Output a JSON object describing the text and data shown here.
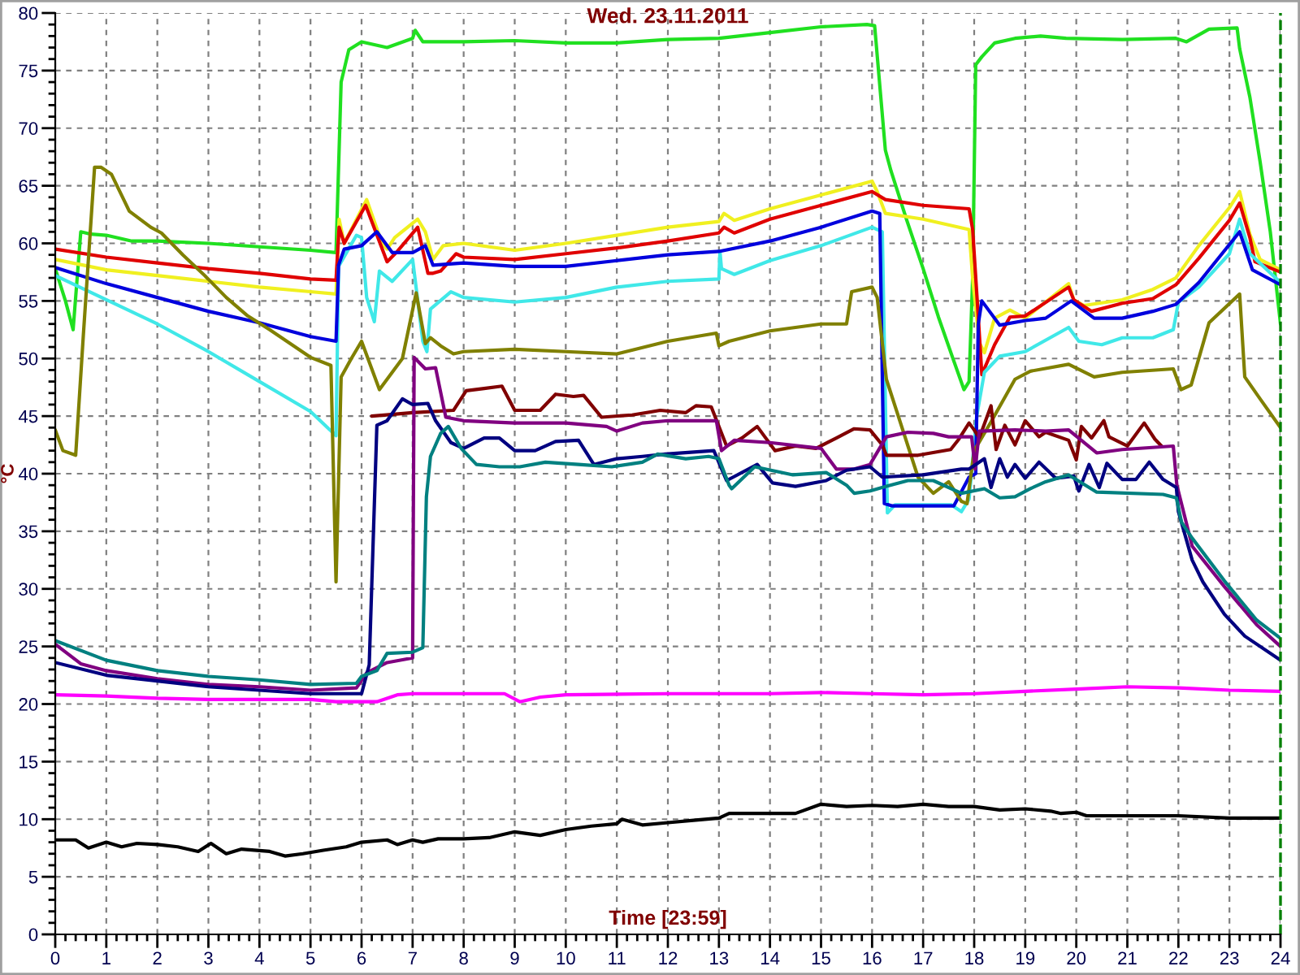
{
  "chart_data": {
    "type": "line",
    "title": "Wed. 23.11.2011",
    "xlabel": "Time [23:59]",
    "ylabel": "°C",
    "xlim": [
      0,
      24
    ],
    "xticks": [
      0,
      1,
      2,
      3,
      4,
      5,
      6,
      7,
      8,
      9,
      10,
      11,
      12,
      13,
      14,
      15,
      16,
      17,
      18,
      19,
      20,
      21,
      22,
      23,
      24
    ],
    "ylim": [
      0,
      80
    ],
    "yticks": [
      0,
      5,
      10,
      15,
      20,
      25,
      30,
      35,
      40,
      45,
      50,
      55,
      60,
      65,
      70,
      75,
      80
    ],
    "grid": true,
    "line_style": "solid",
    "ref_lines": [
      {
        "axis": "x",
        "value": 24,
        "color": "#008000",
        "line_style": "dashed"
      }
    ],
    "series": [
      {
        "color": "#20e020",
        "x": [
          0,
          0.2,
          0.35,
          0.5,
          0.7,
          1,
          1.5,
          2,
          3,
          4,
          5,
          5.5,
          5.6,
          5.75,
          6,
          6.5,
          7,
          7.05,
          7.2,
          8,
          9,
          10,
          11,
          12,
          13,
          14,
          15,
          15.9,
          16.05,
          16.26,
          16.37,
          16.68,
          17,
          17.3,
          17.6,
          17.8,
          17.9,
          17.97,
          18.03,
          18.15,
          18.4,
          18.8,
          19.3,
          19.8,
          20.9,
          21.95,
          22.16,
          22.6,
          23.15,
          23.2,
          23.4,
          23.6,
          23.8,
          24
        ],
        "values": [
          57.8,
          55,
          52.5,
          61,
          60.8,
          60.7,
          60.2,
          60.2,
          60,
          59.7,
          59.4,
          59.2,
          74,
          76.8,
          77.5,
          77,
          77.8,
          78.5,
          77.5,
          77.5,
          77.6,
          77.4,
          77.4,
          77.7,
          77.8,
          78.3,
          78.8,
          79,
          78.9,
          68.1,
          66.3,
          62,
          57.8,
          53.6,
          49.8,
          47.3,
          48,
          57,
          75.5,
          76.2,
          77.4,
          77.8,
          78,
          77.8,
          77.7,
          77.8,
          77.5,
          78.6,
          78.7,
          76.9,
          72.7,
          67.1,
          61,
          53
        ]
      },
      {
        "color": "#f0f020",
        "x": [
          0,
          1,
          2,
          3,
          4,
          5,
          5.5,
          5.56,
          5.66,
          6.1,
          6.4,
          6.5,
          6.65,
          7.1,
          7.25,
          7.4,
          7.6,
          8,
          9,
          10,
          11,
          12,
          13,
          13.1,
          13.3,
          14,
          15,
          16,
          16.1,
          16.26,
          17,
          17.9,
          17.97,
          18.1,
          18.2,
          18.4,
          18.7,
          19,
          19.85,
          19.95,
          20.15,
          20.9,
          21.5,
          21.95,
          22.4,
          23,
          23.2,
          23.4,
          23.6,
          24
        ],
        "values": [
          58.6,
          57.7,
          57.2,
          56.7,
          56.2,
          55.8,
          55.6,
          62.1,
          60,
          63.8,
          60,
          59.5,
          60.5,
          62.1,
          61,
          58.6,
          59.8,
          60,
          59.4,
          60,
          60.7,
          61.4,
          61.9,
          62.6,
          62,
          63,
          64.2,
          65.4,
          64.5,
          62.6,
          62.1,
          61.2,
          57,
          51.4,
          50.5,
          53.5,
          54.2,
          53.5,
          56.5,
          55.1,
          54.6,
          55.1,
          56,
          57,
          59.8,
          63.1,
          64.5,
          60.8,
          58.6,
          57.7
        ]
      },
      {
        "color": "#e00000",
        "x": [
          0,
          1,
          2,
          3,
          4,
          5,
          5.5,
          5.56,
          5.66,
          6.08,
          6.5,
          6.7,
          7.1,
          7.3,
          7.4,
          7.55,
          7.85,
          8,
          9,
          10,
          11,
          12,
          13,
          13.1,
          13.3,
          14,
          15,
          16,
          16.26,
          17,
          17.9,
          17.97,
          18.08,
          18.15,
          18.4,
          18.7,
          19,
          19.85,
          19.95,
          20.3,
          20.9,
          21.5,
          21.95,
          22.4,
          23,
          23.2,
          23.4,
          23.5,
          24
        ],
        "values": [
          59.5,
          58.8,
          58.3,
          57.8,
          57.4,
          56.9,
          56.8,
          61.4,
          60,
          63.3,
          58.4,
          59.3,
          61.4,
          57.4,
          57.4,
          57.6,
          59.1,
          58.8,
          58.6,
          59.1,
          59.6,
          60.2,
          60.9,
          61.4,
          60.9,
          62.1,
          63.3,
          64.5,
          63.8,
          63.3,
          63,
          61.2,
          53.6,
          48.6,
          51.2,
          53.6,
          53.7,
          56.2,
          55.1,
          54.1,
          54.8,
          55.2,
          56.4,
          58.7,
          62,
          63.5,
          60.5,
          58.4,
          57.5
        ]
      },
      {
        "color": "#40e8e8",
        "x": [
          0,
          1,
          2,
          3,
          4,
          5,
          5.5,
          5.55,
          5.9,
          6,
          6.1,
          6.25,
          6.35,
          6.6,
          7,
          7.2,
          7.28,
          7.35,
          7.75,
          8,
          9,
          10,
          11,
          12,
          13,
          13.02,
          13.05,
          13.3,
          14,
          15,
          16,
          16.2,
          16.3,
          16.45,
          17.55,
          17.75,
          17.9,
          18.05,
          18.2,
          18.5,
          19,
          19.85,
          20.05,
          20.5,
          20.9,
          21.5,
          21.9,
          22,
          22.4,
          23,
          23.2,
          23.4,
          24
        ],
        "values": [
          57.2,
          55.1,
          53,
          50.6,
          48,
          45.4,
          43.3,
          58,
          60.7,
          60.5,
          55.3,
          53.2,
          57.6,
          56.7,
          58.6,
          51.5,
          50.6,
          54.3,
          55.8,
          55.3,
          54.9,
          55.3,
          56.2,
          56.7,
          56.9,
          59.3,
          57.8,
          57.3,
          58.5,
          59.8,
          61.4,
          61,
          36.6,
          37.3,
          37.3,
          36.7,
          37.8,
          45,
          48.8,
          50.2,
          50.6,
          52.7,
          51.5,
          51.2,
          51.8,
          51.8,
          52.5,
          54.9,
          56.2,
          59.1,
          62.1,
          59.1,
          56.6
        ]
      },
      {
        "color": "#0000dd",
        "x": [
          0,
          1,
          2,
          3,
          4,
          5,
          5.5,
          5.55,
          5.66,
          6,
          6.3,
          6.6,
          7,
          7.25,
          7.4,
          8,
          9,
          10,
          11,
          12,
          13,
          14,
          15,
          16,
          16.15,
          16.24,
          16.4,
          17.6,
          17.9,
          18.03,
          18.08,
          18.15,
          18.5,
          19,
          19.4,
          19.9,
          20.35,
          20.9,
          21.5,
          21.95,
          22.4,
          23.2,
          23.45,
          24
        ],
        "values": [
          57.9,
          56.5,
          55.3,
          54.1,
          53.1,
          51.9,
          51.5,
          58.1,
          59.5,
          59.8,
          61,
          59.2,
          59.2,
          59.8,
          58.1,
          58.3,
          58,
          58,
          58.5,
          59,
          59.3,
          60.2,
          61.4,
          62.8,
          62.6,
          37.4,
          37.2,
          37.2,
          39.7,
          40,
          53,
          55,
          52.9,
          53.3,
          53.5,
          55,
          53.5,
          53.5,
          54.1,
          54.7,
          56.6,
          61,
          57.7,
          56.4
        ]
      },
      {
        "color": "#808000",
        "x": [
          0,
          0.15,
          0.4,
          0.55,
          0.77,
          0.9,
          1.1,
          1.45,
          1.87,
          2.08,
          2.5,
          2.93,
          3.35,
          3.77,
          4.2,
          4.6,
          5,
          5.4,
          5.5,
          5.6,
          5.8,
          6,
          6.35,
          6.8,
          7.07,
          7.25,
          7.35,
          7.55,
          7.8,
          8,
          9,
          10,
          11,
          12,
          12.95,
          13,
          13.2,
          14,
          15,
          15.5,
          15.6,
          16,
          16.1,
          16.28,
          16.9,
          17.2,
          17.5,
          17.75,
          17.86,
          18,
          18.33,
          18.8,
          19.1,
          19.85,
          20.35,
          20.9,
          21.9,
          22.05,
          22.25,
          22.6,
          23.2,
          23.3,
          23.6,
          24
        ],
        "values": [
          43.8,
          42,
          41.6,
          52,
          66.6,
          66.6,
          66,
          62.8,
          61.4,
          60.9,
          59,
          57.2,
          55.3,
          53.7,
          52.5,
          51.3,
          50.1,
          49.4,
          30.6,
          48.4,
          50,
          51.5,
          47.3,
          50,
          55.7,
          51.3,
          51.8,
          51.1,
          50.4,
          50.6,
          50.8,
          50.6,
          50.4,
          51.5,
          52.2,
          51.1,
          51.5,
          52.4,
          53,
          53,
          55.8,
          56.2,
          55.3,
          48.2,
          39.7,
          38.3,
          39.3,
          37.6,
          37.4,
          42,
          44.5,
          48.2,
          48.9,
          49.5,
          48.4,
          48.8,
          49.1,
          47.3,
          47.7,
          53.1,
          55.6,
          48.4,
          46.5,
          44
        ]
      },
      {
        "color": "#800000",
        "x": [
          6.2,
          7,
          7.8,
          8.05,
          8.4,
          8.75,
          9,
          9.5,
          9.8,
          10.15,
          10.35,
          10.7,
          11.3,
          11.85,
          12.35,
          12.55,
          12.85,
          13.15,
          13.45,
          13.75,
          14.1,
          14.5,
          14.9,
          15.3,
          15.65,
          15.96,
          16.2,
          16.28,
          16.9,
          17.54,
          17.7,
          17.9,
          18,
          18.1,
          18.33,
          18.43,
          18.6,
          18.8,
          19,
          19.27,
          19.4,
          19.85,
          20,
          20.1,
          20.3,
          20.54,
          20.64,
          21,
          21.33,
          21.54,
          21.67
        ],
        "values": [
          45,
          45.3,
          45.5,
          47.2,
          47.4,
          47.6,
          45.5,
          45.5,
          46.9,
          46.7,
          46.8,
          44.9,
          45.1,
          45.5,
          45.3,
          45.9,
          45.8,
          42.4,
          43.1,
          44.1,
          42,
          42.4,
          42.2,
          43.1,
          43.9,
          43.8,
          42.5,
          41.6,
          41.6,
          42.1,
          43,
          44.4,
          43.8,
          43.1,
          45.9,
          42.1,
          44.2,
          42.5,
          44.6,
          43.2,
          43.6,
          42.9,
          41.2,
          44.1,
          43.1,
          44.6,
          43.2,
          42.4,
          44.4,
          43,
          42.4
        ]
      },
      {
        "color": "#800080",
        "x": [
          0,
          0.5,
          1,
          2,
          3,
          4,
          5,
          5.9,
          6.1,
          6.5,
          7,
          7.03,
          7.25,
          7.45,
          7.65,
          8,
          9,
          10,
          10.8,
          11,
          11.5,
          12,
          12.95,
          13.05,
          13.3,
          14,
          15,
          15.3,
          15.65,
          15.96,
          16.28,
          16.7,
          17.2,
          17.5,
          17.95,
          18.02,
          18.1,
          18.8,
          19.4,
          19.85,
          20.4,
          20.9,
          21.9,
          21.97,
          22.27,
          22.9,
          23.53,
          24
        ],
        "values": [
          25.2,
          23.5,
          22.9,
          22.2,
          21.7,
          21.5,
          21.2,
          21.4,
          22.7,
          23.6,
          24,
          50.1,
          49.1,
          49.2,
          44.9,
          44.6,
          44.4,
          44.4,
          44.1,
          43.7,
          44.4,
          44.6,
          44.6,
          42,
          42.9,
          42.7,
          42.2,
          40.4,
          40.4,
          40.8,
          43.2,
          43.6,
          43.5,
          43.2,
          43.2,
          40.4,
          43.7,
          43.8,
          43.7,
          43.8,
          41.8,
          42.1,
          42.4,
          39,
          33.7,
          30.2,
          26.9,
          25
        ]
      },
      {
        "color": "#000080",
        "x": [
          0,
          1,
          2,
          3,
          4,
          5,
          6,
          6.15,
          6.3,
          6.5,
          6.8,
          7,
          7.3,
          7.45,
          7.75,
          8,
          8.4,
          8.7,
          9,
          9.4,
          9.8,
          10.25,
          10.55,
          11,
          11.5,
          11.95,
          12.9,
          13.15,
          13.75,
          14.05,
          14.5,
          15.1,
          15.5,
          15.96,
          16.2,
          17,
          17.75,
          17.9,
          18.2,
          18.33,
          18.5,
          18.65,
          18.8,
          19,
          19.27,
          19.6,
          19.95,
          20.05,
          20.25,
          20.45,
          20.6,
          20.9,
          21.17,
          21.43,
          21.7,
          21.96,
          22,
          22.27,
          22.48,
          22.9,
          23.3,
          24
        ],
        "values": [
          23.6,
          22.5,
          22,
          21.5,
          21.2,
          20.9,
          20.9,
          23.4,
          44.2,
          44.6,
          46.5,
          46,
          46.1,
          44.6,
          42.7,
          42.2,
          43.1,
          43.1,
          42,
          42,
          42.8,
          42.9,
          40.8,
          41.3,
          41.5,
          41.7,
          42,
          39.4,
          40.8,
          39.2,
          38.9,
          39.4,
          40.3,
          40.6,
          39.7,
          39.9,
          40.4,
          40.4,
          41.3,
          38.8,
          41.3,
          39.7,
          40.8,
          39.6,
          41,
          39.6,
          39.8,
          38.5,
          40.8,
          38.8,
          40.9,
          39.5,
          39.5,
          41,
          39.5,
          38.8,
          36.7,
          32.5,
          30.6,
          27.8,
          25.9,
          23.8
        ]
      },
      {
        "color": "#008080",
        "x": [
          0,
          1,
          2,
          3,
          4,
          5,
          5.9,
          6,
          6.3,
          6.5,
          7,
          7.2,
          7.27,
          7.35,
          7.55,
          7.7,
          7.95,
          8.25,
          8.7,
          9.1,
          9.6,
          10.25,
          10.9,
          11.5,
          11.8,
          12.35,
          12.8,
          13,
          13.2,
          13.25,
          13.7,
          14.45,
          15.1,
          15.5,
          15.65,
          15.96,
          16.28,
          16.7,
          17.2,
          17.75,
          18.2,
          18.5,
          18.8,
          19.1,
          19.4,
          19.85,
          20.4,
          21.7,
          21.96,
          22.06,
          22.27,
          22.9,
          23.53,
          24
        ],
        "values": [
          25.5,
          23.8,
          22.9,
          22.4,
          22.1,
          21.7,
          21.8,
          22.4,
          22.9,
          24.4,
          24.5,
          24.9,
          38,
          41.5,
          43.5,
          44.1,
          42.2,
          40.8,
          40.6,
          40.6,
          41,
          40.8,
          40.6,
          41,
          41.7,
          41.3,
          41.5,
          41.3,
          39,
          38.7,
          40.6,
          39.9,
          40.1,
          39,
          38.3,
          38.5,
          38.9,
          39.4,
          39.4,
          38.3,
          38.7,
          37.9,
          38,
          38.7,
          39.3,
          39.9,
          38.4,
          38.2,
          37.9,
          35.8,
          34.4,
          30.7,
          27.3,
          25.7
        ]
      },
      {
        "color": "#ff00ff",
        "x": [
          0,
          1,
          2,
          3,
          5,
          5.5,
          6.3,
          6.7,
          7,
          8,
          8.8,
          9.1,
          9.5,
          10,
          12,
          14,
          15,
          16,
          17,
          18,
          19,
          20,
          21,
          22,
          23,
          24
        ],
        "values": [
          20.8,
          20.7,
          20.5,
          20.4,
          20.4,
          20.2,
          20.2,
          20.8,
          20.9,
          20.9,
          20.9,
          20.2,
          20.6,
          20.8,
          20.9,
          20.9,
          21,
          20.9,
          20.8,
          20.9,
          21.1,
          21.3,
          21.5,
          21.4,
          21.2,
          21.1
        ]
      },
      {
        "color": "#000000",
        "x": [
          0,
          0.4,
          0.65,
          1,
          1.3,
          1.6,
          2,
          2.4,
          2.8,
          3.05,
          3.35,
          3.65,
          4.2,
          4.5,
          4.85,
          5.25,
          5.7,
          6,
          6.5,
          6.7,
          7,
          7.2,
          7.5,
          8,
          8.5,
          9,
          9.5,
          10,
          10.5,
          11,
          11.1,
          11.5,
          12,
          12.5,
          13,
          13.2,
          14,
          14.5,
          15,
          15.5,
          16,
          16.5,
          17,
          17.5,
          18,
          18.5,
          19,
          19.5,
          19.7,
          20,
          20.2,
          21,
          22,
          23,
          24
        ],
        "values": [
          8.2,
          8.2,
          7.5,
          8,
          7.6,
          7.9,
          7.8,
          7.6,
          7.2,
          7.9,
          7,
          7.4,
          7.2,
          6.8,
          7,
          7.3,
          7.6,
          8,
          8.2,
          7.8,
          8.2,
          8,
          8.3,
          8.3,
          8.4,
          8.9,
          8.6,
          9.1,
          9.4,
          9.6,
          10,
          9.5,
          9.7,
          9.9,
          10.1,
          10.5,
          10.5,
          10.5,
          11.3,
          11.1,
          11.2,
          11.1,
          11.3,
          11.1,
          11.1,
          10.8,
          10.9,
          10.7,
          10.5,
          10.6,
          10.3,
          10.3,
          10.3,
          10.1,
          10.1
        ]
      }
    ]
  }
}
